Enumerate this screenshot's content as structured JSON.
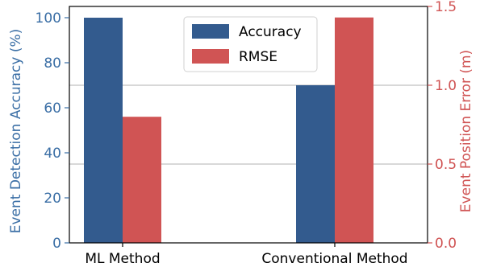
{
  "colors": {
    "accuracy": "#335b8e",
    "rmse": "#d05454",
    "axis_left": "#3a6ea5",
    "axis_right": "#d05454",
    "grid": "#b0b0b0",
    "frame": "#000000"
  },
  "chart_data": {
    "type": "bar",
    "categories": [
      "ML Method",
      "Conventional Method"
    ],
    "series": [
      {
        "name": "Accuracy",
        "axis": "left",
        "values": [
          100,
          70
        ]
      },
      {
        "name": "RMSE",
        "axis": "right",
        "values": [
          0.8,
          1.43
        ]
      }
    ],
    "ylabel_left": "Event Detection Accuracy (%)",
    "ylabel_right": "Event Position Error (m)",
    "ylim_left": [
      0,
      105
    ],
    "ylim_right": [
      0,
      1.5
    ],
    "yticks_left": [
      "0",
      "20",
      "40",
      "60",
      "80",
      "100"
    ],
    "yticks_right": [
      "0.0",
      "0.5",
      "1.0",
      "1.5"
    ],
    "grid": "horizontal at right-axis ticks",
    "legend_position": "top-center"
  }
}
